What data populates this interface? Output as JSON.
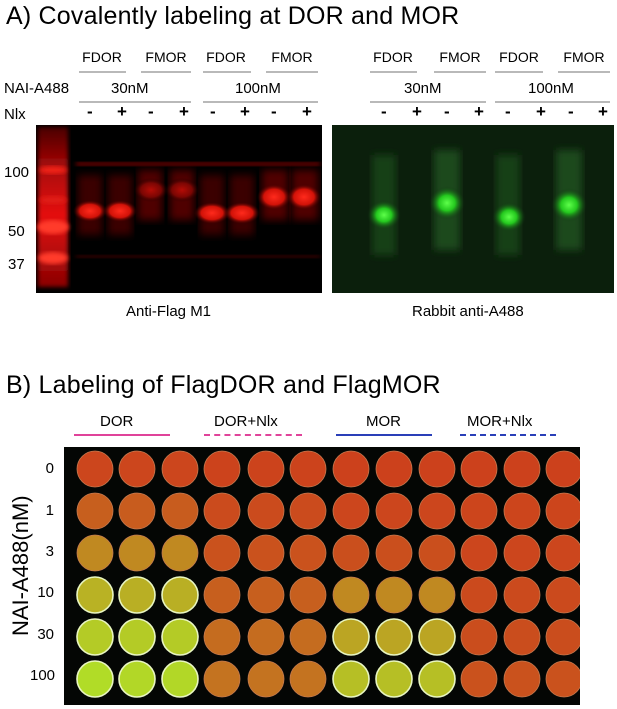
{
  "panel_a": {
    "title": "A) Covalently labeling at DOR and MOR",
    "row_label_nai": "NAI-A488",
    "row_label_nlx": "Nlx",
    "lane_headers": [
      "FDOR",
      "FMOR",
      "FDOR",
      "FMOR"
    ],
    "concentrations": [
      "30nM",
      "100nM"
    ],
    "signs": [
      "-",
      "+",
      "-",
      "+",
      "-",
      "+",
      "-",
      "+"
    ],
    "mw_markers": [
      "100",
      "50",
      "37"
    ],
    "left_gel_caption": "Anti-Flag M1",
    "right_gel_caption": "Rabbit anti-A488",
    "colors": {
      "left_gel": "#e0120f",
      "right_gel": "#2ee12a",
      "background": "#000000"
    }
  },
  "panel_b": {
    "title": "B) Labeling of FlagDOR and FlagMOR",
    "groups": [
      {
        "label": "DOR",
        "color": "#e0439a",
        "style": "solid"
      },
      {
        "label": "DOR+Nlx",
        "color": "#e0439a",
        "style": "dashed"
      },
      {
        "label": "MOR",
        "color": "#2a3fb8",
        "style": "solid"
      },
      {
        "label": "MOR+Nlx",
        "color": "#2a3fb8",
        "style": "dashed"
      }
    ],
    "y_axis_label": "NAI-A488(nM)",
    "rows": [
      "0",
      "1",
      "3",
      "10",
      "30",
      "100"
    ],
    "well_greenness": [
      [
        0.05,
        0.05,
        0.05,
        0.03,
        0.03,
        0.03,
        0.02,
        0.02,
        0.02,
        0.02,
        0.02,
        0.02
      ],
      [
        0.2,
        0.18,
        0.18,
        0.08,
        0.08,
        0.08,
        0.05,
        0.05,
        0.05,
        0.04,
        0.04,
        0.04
      ],
      [
        0.45,
        0.45,
        0.45,
        0.12,
        0.12,
        0.12,
        0.1,
        0.1,
        0.1,
        0.05,
        0.05,
        0.05
      ],
      [
        0.7,
        0.68,
        0.68,
        0.2,
        0.2,
        0.2,
        0.45,
        0.45,
        0.45,
        0.07,
        0.07,
        0.07
      ],
      [
        0.85,
        0.85,
        0.85,
        0.28,
        0.28,
        0.28,
        0.62,
        0.62,
        0.62,
        0.09,
        0.09,
        0.09
      ],
      [
        0.95,
        0.92,
        0.92,
        0.32,
        0.32,
        0.32,
        0.78,
        0.78,
        0.78,
        0.12,
        0.12,
        0.12
      ]
    ]
  }
}
